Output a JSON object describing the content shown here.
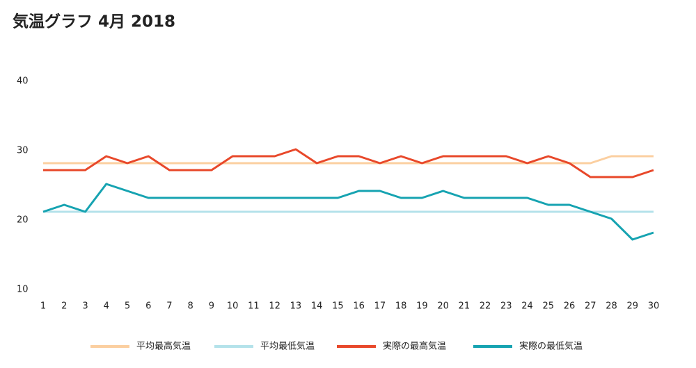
{
  "chart_data": {
    "type": "line",
    "title": "気温グラフ 4月 2018",
    "x": [
      1,
      2,
      3,
      4,
      5,
      6,
      7,
      8,
      9,
      10,
      11,
      12,
      13,
      14,
      15,
      16,
      17,
      18,
      19,
      20,
      21,
      22,
      23,
      24,
      25,
      26,
      27,
      28,
      29,
      30
    ],
    "xlim": [
      1,
      30
    ],
    "xticks": [
      1,
      2,
      3,
      4,
      5,
      6,
      7,
      8,
      9,
      10,
      11,
      12,
      13,
      14,
      15,
      16,
      17,
      18,
      19,
      20,
      21,
      22,
      23,
      24,
      25,
      26,
      27,
      28,
      29,
      30
    ],
    "ylim": [
      10,
      40
    ],
    "yticks": [
      10,
      20,
      30,
      40
    ],
    "grid": false,
    "legend": "bottom",
    "series": [
      {
        "name": "平均最高気温",
        "color": "#fbcfa0",
        "values": [
          28,
          28,
          28,
          28,
          28,
          28,
          28,
          28,
          28,
          28,
          28,
          28,
          28,
          28,
          28,
          28,
          28,
          28,
          28,
          28,
          28,
          28,
          28,
          28,
          28,
          28,
          28,
          29,
          29,
          29
        ]
      },
      {
        "name": "平均最低気温",
        "color": "#b4e2ea",
        "values": [
          21,
          21,
          21,
          21,
          21,
          21,
          21,
          21,
          21,
          21,
          21,
          21,
          21,
          21,
          21,
          21,
          21,
          21,
          21,
          21,
          21,
          21,
          21,
          21,
          21,
          21,
          21,
          21,
          21,
          21
        ]
      },
      {
        "name": "実際の最高気温",
        "color": "#e8482a",
        "values": [
          27,
          27,
          27,
          29,
          28,
          29,
          27,
          27,
          27,
          29,
          29,
          29,
          30,
          28,
          29,
          29,
          28,
          29,
          28,
          29,
          29,
          29,
          29,
          28,
          29,
          28,
          26,
          26,
          26,
          27
        ]
      },
      {
        "name": "実際の最低気温",
        "color": "#16a3b1",
        "values": [
          21,
          22,
          21,
          25,
          24,
          23,
          23,
          23,
          23,
          23,
          23,
          23,
          23,
          23,
          23,
          24,
          24,
          23,
          23,
          24,
          23,
          23,
          23,
          23,
          22,
          22,
          21,
          20,
          17,
          18
        ]
      }
    ]
  }
}
